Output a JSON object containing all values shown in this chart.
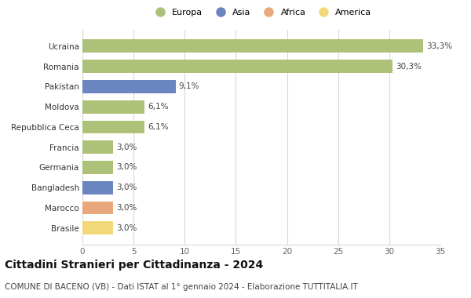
{
  "categories": [
    "Brasile",
    "Marocco",
    "Bangladesh",
    "Germania",
    "Francia",
    "Repubblica Ceca",
    "Moldova",
    "Pakistan",
    "Romania",
    "Ucraina"
  ],
  "values": [
    3.0,
    3.0,
    3.0,
    3.0,
    3.0,
    6.1,
    6.1,
    9.1,
    30.3,
    33.3
  ],
  "colors": [
    "#f2d878",
    "#e8a87c",
    "#6b85c0",
    "#adc178",
    "#adc178",
    "#adc178",
    "#adc178",
    "#6b85c0",
    "#adc178",
    "#adc178"
  ],
  "labels": [
    "3,0%",
    "3,0%",
    "3,0%",
    "3,0%",
    "3,0%",
    "6,1%",
    "6,1%",
    "9,1%",
    "30,3%",
    "33,3%"
  ],
  "legend": [
    {
      "label": "Europa",
      "color": "#adc178"
    },
    {
      "label": "Asia",
      "color": "#6b85c0"
    },
    {
      "label": "Africa",
      "color": "#e8a87c"
    },
    {
      "label": "America",
      "color": "#f2d878"
    }
  ],
  "xlim": [
    0,
    35
  ],
  "xticks": [
    0,
    5,
    10,
    15,
    20,
    25,
    30,
    35
  ],
  "title": "Cittadini Stranieri per Cittadinanza - 2024",
  "subtitle": "COMUNE DI BACENO (VB) - Dati ISTAT al 1° gennaio 2024 - Elaborazione TUTTITALIA.IT",
  "title_fontsize": 10,
  "subtitle_fontsize": 7.5,
  "background_color": "#ffffff",
  "grid_color": "#d8d8d8"
}
